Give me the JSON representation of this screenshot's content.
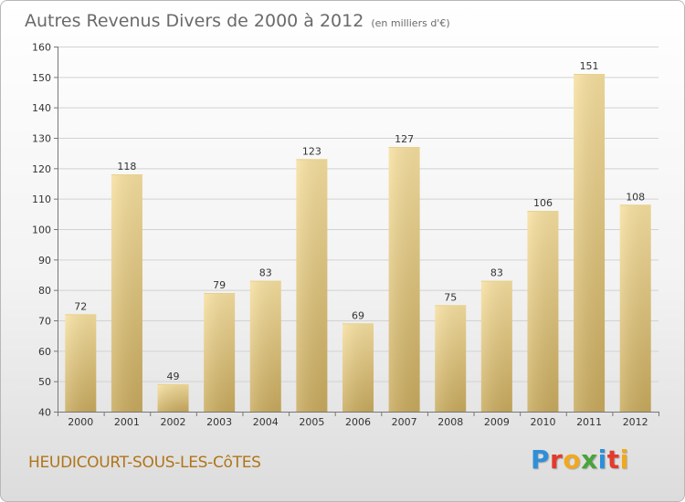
{
  "title": "Autres Revenus Divers de 2000 à 2012",
  "unit_note": "(en milliers d'€)",
  "location": "HEUDICOURT-SOUS-LES-CôTES",
  "logo": {
    "text": "Proxiti",
    "letters": [
      {
        "ch": "P",
        "color": "#2e8fd8"
      },
      {
        "ch": "r",
        "color": "#e23b2e"
      },
      {
        "ch": "o",
        "color": "#f2a81d"
      },
      {
        "ch": "x",
        "color": "#4aa33b"
      },
      {
        "ch": "i",
        "color": "#2e8fd8"
      },
      {
        "ch": "t",
        "color": "#e23b2e"
      },
      {
        "ch": "i",
        "color": "#f2a81d"
      }
    ]
  },
  "colors": {
    "bar_top": "#f7e0a0",
    "bar_bottom": "#c9ab5e",
    "location_text": "#b0751a"
  },
  "chart_data": {
    "type": "bar",
    "title": "Autres Revenus Divers de 2000 à 2012",
    "subtitle": "(en milliers d'€)",
    "xlabel": "",
    "ylabel": "",
    "categories": [
      "2000",
      "2001",
      "2002",
      "2003",
      "2004",
      "2005",
      "2006",
      "2007",
      "2008",
      "2009",
      "2010",
      "2011",
      "2012"
    ],
    "values": [
      72,
      118,
      49,
      79,
      83,
      123,
      69,
      127,
      75,
      83,
      106,
      151,
      108
    ],
    "ylim": [
      40,
      160
    ],
    "yticks": [
      40,
      50,
      60,
      70,
      80,
      90,
      100,
      110,
      120,
      130,
      140,
      150,
      160
    ],
    "grid": true,
    "data_labels": true
  }
}
